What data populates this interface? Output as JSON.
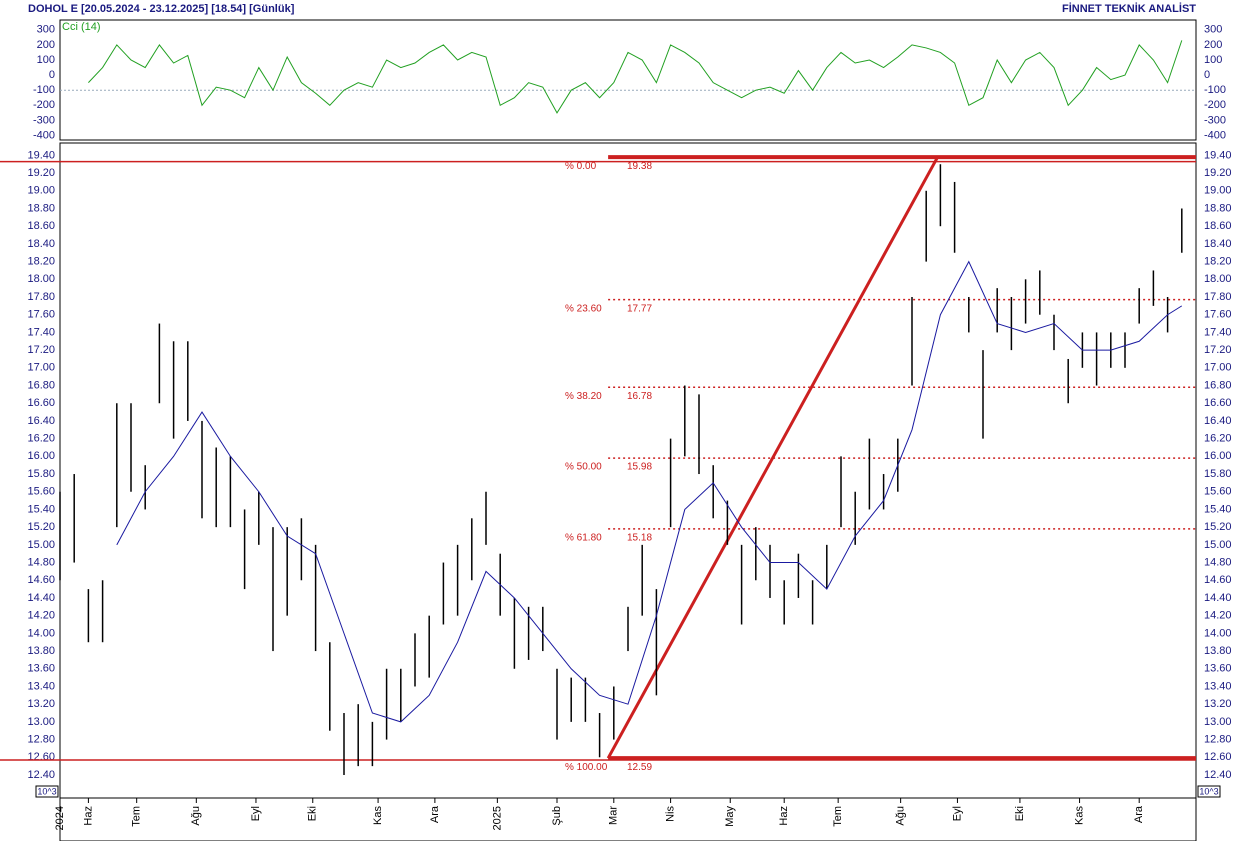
{
  "header": {
    "title": "DOHOL E  [20.05.2024 - 23.12.2025]  [18.54]  [Günlük]",
    "brand": "FİNNET TEKNİK ANALİST",
    "unit_label": "10^3"
  },
  "chart_data": [
    {
      "type": "line",
      "title": "Cci (14)",
      "color": "#22a022",
      "x": [
        10,
        15,
        20,
        25,
        30,
        35,
        40,
        45,
        50,
        55,
        60,
        65,
        70,
        75,
        80,
        85,
        90,
        95,
        100,
        105,
        110,
        115,
        120,
        125,
        130,
        135,
        140,
        145,
        150,
        155,
        160,
        165,
        170,
        175,
        180,
        185,
        190,
        195,
        200,
        205,
        210,
        215,
        220,
        225,
        230,
        235,
        240,
        245,
        250,
        255,
        260,
        265,
        270,
        275,
        280,
        285,
        290,
        295,
        300,
        305,
        310,
        315,
        320,
        325,
        330,
        335,
        340,
        345,
        350,
        355,
        360,
        365,
        370,
        375,
        380,
        385,
        390,
        395
      ],
      "values": [
        -50,
        50,
        200,
        100,
        50,
        200,
        80,
        130,
        -200,
        -80,
        -100,
        -150,
        50,
        -100,
        120,
        -50,
        -120,
        -200,
        -100,
        -50,
        -80,
        100,
        50,
        80,
        150,
        200,
        100,
        150,
        120,
        -200,
        -150,
        -50,
        -80,
        -250,
        -100,
        -50,
        -150,
        -50,
        150,
        100,
        -50,
        200,
        150,
        80,
        -50,
        -100,
        -150,
        -100,
        -80,
        -120,
        30,
        -100,
        50,
        150,
        80,
        100,
        50,
        120,
        200,
        180,
        150,
        80,
        -200,
        -150,
        100,
        -50,
        100,
        150,
        50,
        -200,
        -100,
        50,
        -30,
        0,
        200,
        100,
        -50,
        230
      ],
      "xlim": [
        0,
        400
      ],
      "ylim": [
        -430,
        365
      ],
      "yticks": [
        -400,
        -300,
        -200,
        -100,
        0,
        100,
        200,
        300
      ],
      "reference_line": -100
    },
    {
      "type": "hlc",
      "x": [
        0,
        5,
        10,
        15,
        20,
        25,
        30,
        35,
        40,
        45,
        50,
        55,
        60,
        65,
        70,
        75,
        80,
        85,
        90,
        95,
        100,
        105,
        110,
        115,
        120,
        125,
        130,
        135,
        140,
        145,
        150,
        155,
        160,
        165,
        170,
        175,
        180,
        185,
        190,
        195,
        200,
        205,
        210,
        215,
        220,
        225,
        230,
        235,
        240,
        245,
        250,
        255,
        260,
        265,
        270,
        275,
        280,
        285,
        290,
        295,
        300,
        305,
        310,
        315,
        320,
        325,
        330,
        335,
        340,
        345,
        350,
        355,
        360,
        365,
        370,
        375,
        380,
        385,
        390,
        395
      ],
      "high": [
        15.6,
        15.8,
        14.5,
        14.6,
        16.6,
        16.6,
        15.9,
        17.5,
        17.3,
        17.3,
        16.4,
        16.1,
        16.0,
        15.4,
        15.6,
        15.2,
        15.2,
        15.3,
        15.0,
        13.9,
        13.1,
        13.2,
        13.0,
        13.6,
        13.6,
        14.0,
        14.2,
        14.8,
        15.0,
        15.3,
        15.6,
        14.9,
        14.4,
        14.3,
        14.3,
        13.6,
        13.5,
        13.5,
        13.1,
        13.4,
        14.3,
        15.0,
        14.5,
        16.2,
        16.8,
        16.7,
        15.9,
        15.5,
        15.0,
        15.2,
        15.0,
        14.6,
        14.9,
        14.6,
        15.0,
        16.0,
        15.6,
        16.2,
        15.8,
        16.2,
        17.8,
        19.0,
        19.3,
        19.1,
        17.8,
        17.2,
        17.9,
        17.8,
        18.0,
        18.1,
        17.6,
        17.1,
        17.4,
        17.4,
        17.4,
        17.4,
        17.9,
        18.1,
        17.8,
        18.8
      ],
      "low": [
        14.6,
        14.8,
        13.9,
        13.9,
        15.2,
        15.6,
        15.4,
        16.6,
        16.2,
        16.4,
        15.3,
        15.2,
        15.2,
        14.5,
        15.0,
        13.8,
        14.2,
        14.6,
        13.8,
        12.9,
        12.4,
        12.5,
        12.5,
        12.8,
        13.0,
        13.4,
        13.5,
        14.1,
        14.2,
        14.6,
        15.0,
        14.2,
        13.6,
        13.7,
        13.8,
        12.8,
        13.0,
        13.0,
        12.6,
        12.8,
        13.8,
        14.2,
        13.3,
        15.2,
        16.0,
        15.8,
        15.3,
        15.0,
        14.1,
        14.6,
        14.4,
        14.1,
        14.4,
        14.1,
        14.5,
        15.2,
        15.0,
        15.4,
        15.4,
        15.6,
        16.8,
        18.2,
        18.6,
        18.3,
        17.4,
        16.2,
        17.4,
        17.2,
        17.5,
        17.6,
        17.2,
        16.6,
        17.0,
        16.8,
        17.0,
        17.0,
        17.5,
        17.7,
        17.4,
        18.3
      ],
      "color": "#000000",
      "lines": [
        {
          "color": "#1a1aa0",
          "x": [
            20,
            30,
            40,
            50,
            60,
            70,
            80,
            90,
            100,
            110,
            120,
            130,
            140,
            150,
            160,
            170,
            180,
            190,
            200,
            210,
            220,
            230,
            240,
            250,
            260,
            270,
            280,
            290,
            300,
            310,
            320,
            330,
            340,
            350,
            360,
            370,
            380,
            390,
            395
          ],
          "values": [
            15.0,
            15.6,
            16.0,
            16.5,
            16.0,
            15.6,
            15.1,
            14.9,
            14.0,
            13.1,
            13.0,
            13.3,
            13.9,
            14.7,
            14.4,
            14.0,
            13.6,
            13.3,
            13.2,
            14.2,
            15.4,
            15.7,
            15.2,
            14.8,
            14.8,
            14.5,
            15.1,
            15.5,
            16.3,
            17.6,
            18.2,
            17.5,
            17.4,
            17.5,
            17.2,
            17.2,
            17.3,
            17.6,
            17.7
          ]
        }
      ],
      "fib": [
        {
          "label": "% 0.00",
          "value": 19.38
        },
        {
          "label": "% 23.60",
          "value": 17.77
        },
        {
          "label": "% 38.20",
          "value": 16.78
        },
        {
          "label": "% 50.00",
          "value": 15.98
        },
        {
          "label": "% 61.80",
          "value": 15.18
        },
        {
          "label": "% 100.00",
          "value": 12.59
        }
      ],
      "trend_x": [
        193,
        309
      ],
      "hlines": [
        19.33,
        12.57
      ],
      "fib_color": "#cc2020",
      "xlim": [
        0,
        400
      ],
      "ylim": [
        12.14,
        19.54
      ],
      "yticks": [
        {
          "value": 12.4,
          "label": "12.40"
        },
        {
          "value": 12.6,
          "label": "12.60"
        },
        {
          "value": 12.8,
          "label": "12.80"
        },
        {
          "value": 13,
          "label": "13.00"
        },
        {
          "value": 13.2,
          "label": "13.20"
        },
        {
          "value": 13.4,
          "label": "13.40"
        },
        {
          "value": 13.6,
          "label": "13.60"
        },
        {
          "value": 13.8,
          "label": "13.80"
        },
        {
          "value": 14,
          "label": "14.00"
        },
        {
          "value": 14.2,
          "label": "14.20"
        },
        {
          "value": 14.4,
          "label": "14.40"
        },
        {
          "value": 14.6,
          "label": "14.60"
        },
        {
          "value": 14.8,
          "label": "14.80"
        },
        {
          "value": 15,
          "label": "15.00"
        },
        {
          "value": 15.2,
          "label": "15.20"
        },
        {
          "value": 15.4,
          "label": "15.40"
        },
        {
          "value": 15.6,
          "label": "15.60"
        },
        {
          "value": 15.8,
          "label": "15.80"
        },
        {
          "value": 16,
          "label": "16.00"
        },
        {
          "value": 16.2,
          "label": "16.20"
        },
        {
          "value": 16.4,
          "label": "16.40"
        },
        {
          "value": 16.6,
          "label": "16.60"
        },
        {
          "value": 16.8,
          "label": "16.80"
        },
        {
          "value": 17,
          "label": "17.00"
        },
        {
          "value": 17.2,
          "label": "17.20"
        },
        {
          "value": 17.4,
          "label": "17.40"
        },
        {
          "value": 17.6,
          "label": "17.60"
        },
        {
          "value": 17.8,
          "label": "17.80"
        },
        {
          "value": 18,
          "label": "18.00"
        },
        {
          "value": 18.2,
          "label": "18.20"
        },
        {
          "value": 18.4,
          "label": "18.40"
        },
        {
          "value": 18.6,
          "label": "18.60"
        },
        {
          "value": 18.8,
          "label": "18.80"
        },
        {
          "value": 19,
          "label": "19.00"
        },
        {
          "value": 19.2,
          "label": "19.20"
        },
        {
          "value": 19.4,
          "label": "19.40"
        }
      ],
      "xticks": [
        {
          "value": 0,
          "label": "2024"
        },
        {
          "value": 10,
          "label": "Haz"
        },
        {
          "value": 27,
          "label": "Tem"
        },
        {
          "value": 48,
          "label": "Ağu"
        },
        {
          "value": 69,
          "label": "Eyl"
        },
        {
          "value": 89,
          "label": "Eki"
        },
        {
          "value": 112,
          "label": "Kas"
        },
        {
          "value": 132,
          "label": "Ara"
        },
        {
          "value": 154,
          "label": "2025"
        },
        {
          "value": 175,
          "label": "Şub"
        },
        {
          "value": 195,
          "label": "Mar"
        },
        {
          "value": 215,
          "label": "Nis"
        },
        {
          "value": 236,
          "label": "May"
        },
        {
          "value": 255,
          "label": "Haz"
        },
        {
          "value": 274,
          "label": "Tem"
        },
        {
          "value": 296,
          "label": "Ağu"
        },
        {
          "value": 316,
          "label": "Eyl"
        },
        {
          "value": 338,
          "label": "Eki"
        },
        {
          "value": 359,
          "label": "Kas"
        },
        {
          "value": 380,
          "label": "Ara"
        }
      ]
    }
  ]
}
